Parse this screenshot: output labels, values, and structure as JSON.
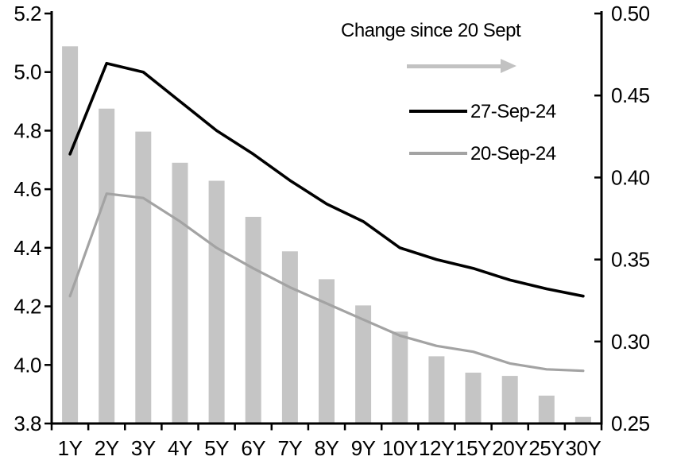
{
  "chart_data": {
    "type": "combo",
    "title": "",
    "categories": [
      "1Y",
      "2Y",
      "3Y",
      "4Y",
      "5Y",
      "6Y",
      "7Y",
      "8Y",
      "9Y",
      "10Y",
      "12Y",
      "15Y",
      "20Y",
      "25Y",
      "30Y"
    ],
    "series": [
      {
        "name": "Change since 20 Sept",
        "type": "bar",
        "axis": "right",
        "color": "#c5c5c5",
        "values": [
          0.48,
          0.442,
          0.428,
          0.409,
          0.398,
          0.376,
          0.355,
          0.338,
          0.322,
          0.306,
          0.291,
          0.281,
          0.279,
          0.267,
          0.254
        ]
      },
      {
        "name": "27-Sep-24",
        "type": "line",
        "axis": "left",
        "color": "#000000",
        "values": [
          4.72,
          5.03,
          5.0,
          4.9,
          4.8,
          4.72,
          4.63,
          4.55,
          4.49,
          4.4,
          4.36,
          4.33,
          4.29,
          4.26,
          4.235
        ]
      },
      {
        "name": "20-Sep-24",
        "type": "line",
        "axis": "left",
        "color": "#a3a3a3",
        "values": [
          4.235,
          4.585,
          4.57,
          4.49,
          4.4,
          4.33,
          4.265,
          4.21,
          4.155,
          4.1,
          4.065,
          4.045,
          4.005,
          3.985,
          3.98
        ]
      }
    ],
    "left_axis": {
      "min": 3.8,
      "max": 5.2,
      "step": 0.2,
      "tick_labels": [
        "3.8",
        "4.0",
        "4.2",
        "4.4",
        "4.6",
        "4.8",
        "5.0",
        "5.2"
      ]
    },
    "right_axis": {
      "min": 0.25,
      "max": 0.5,
      "step": 0.05,
      "tick_labels": [
        "0.25",
        "0.30",
        "0.35",
        "0.40",
        "0.45",
        "0.50"
      ]
    },
    "grid": false,
    "legend_position": "top-right"
  },
  "colors": {
    "bar": "#c5c5c5",
    "line_black": "#000000",
    "line_gray": "#a3a3a3",
    "arrow": "#c2c2c2",
    "axis": "#000000",
    "background": "#ffffff"
  }
}
